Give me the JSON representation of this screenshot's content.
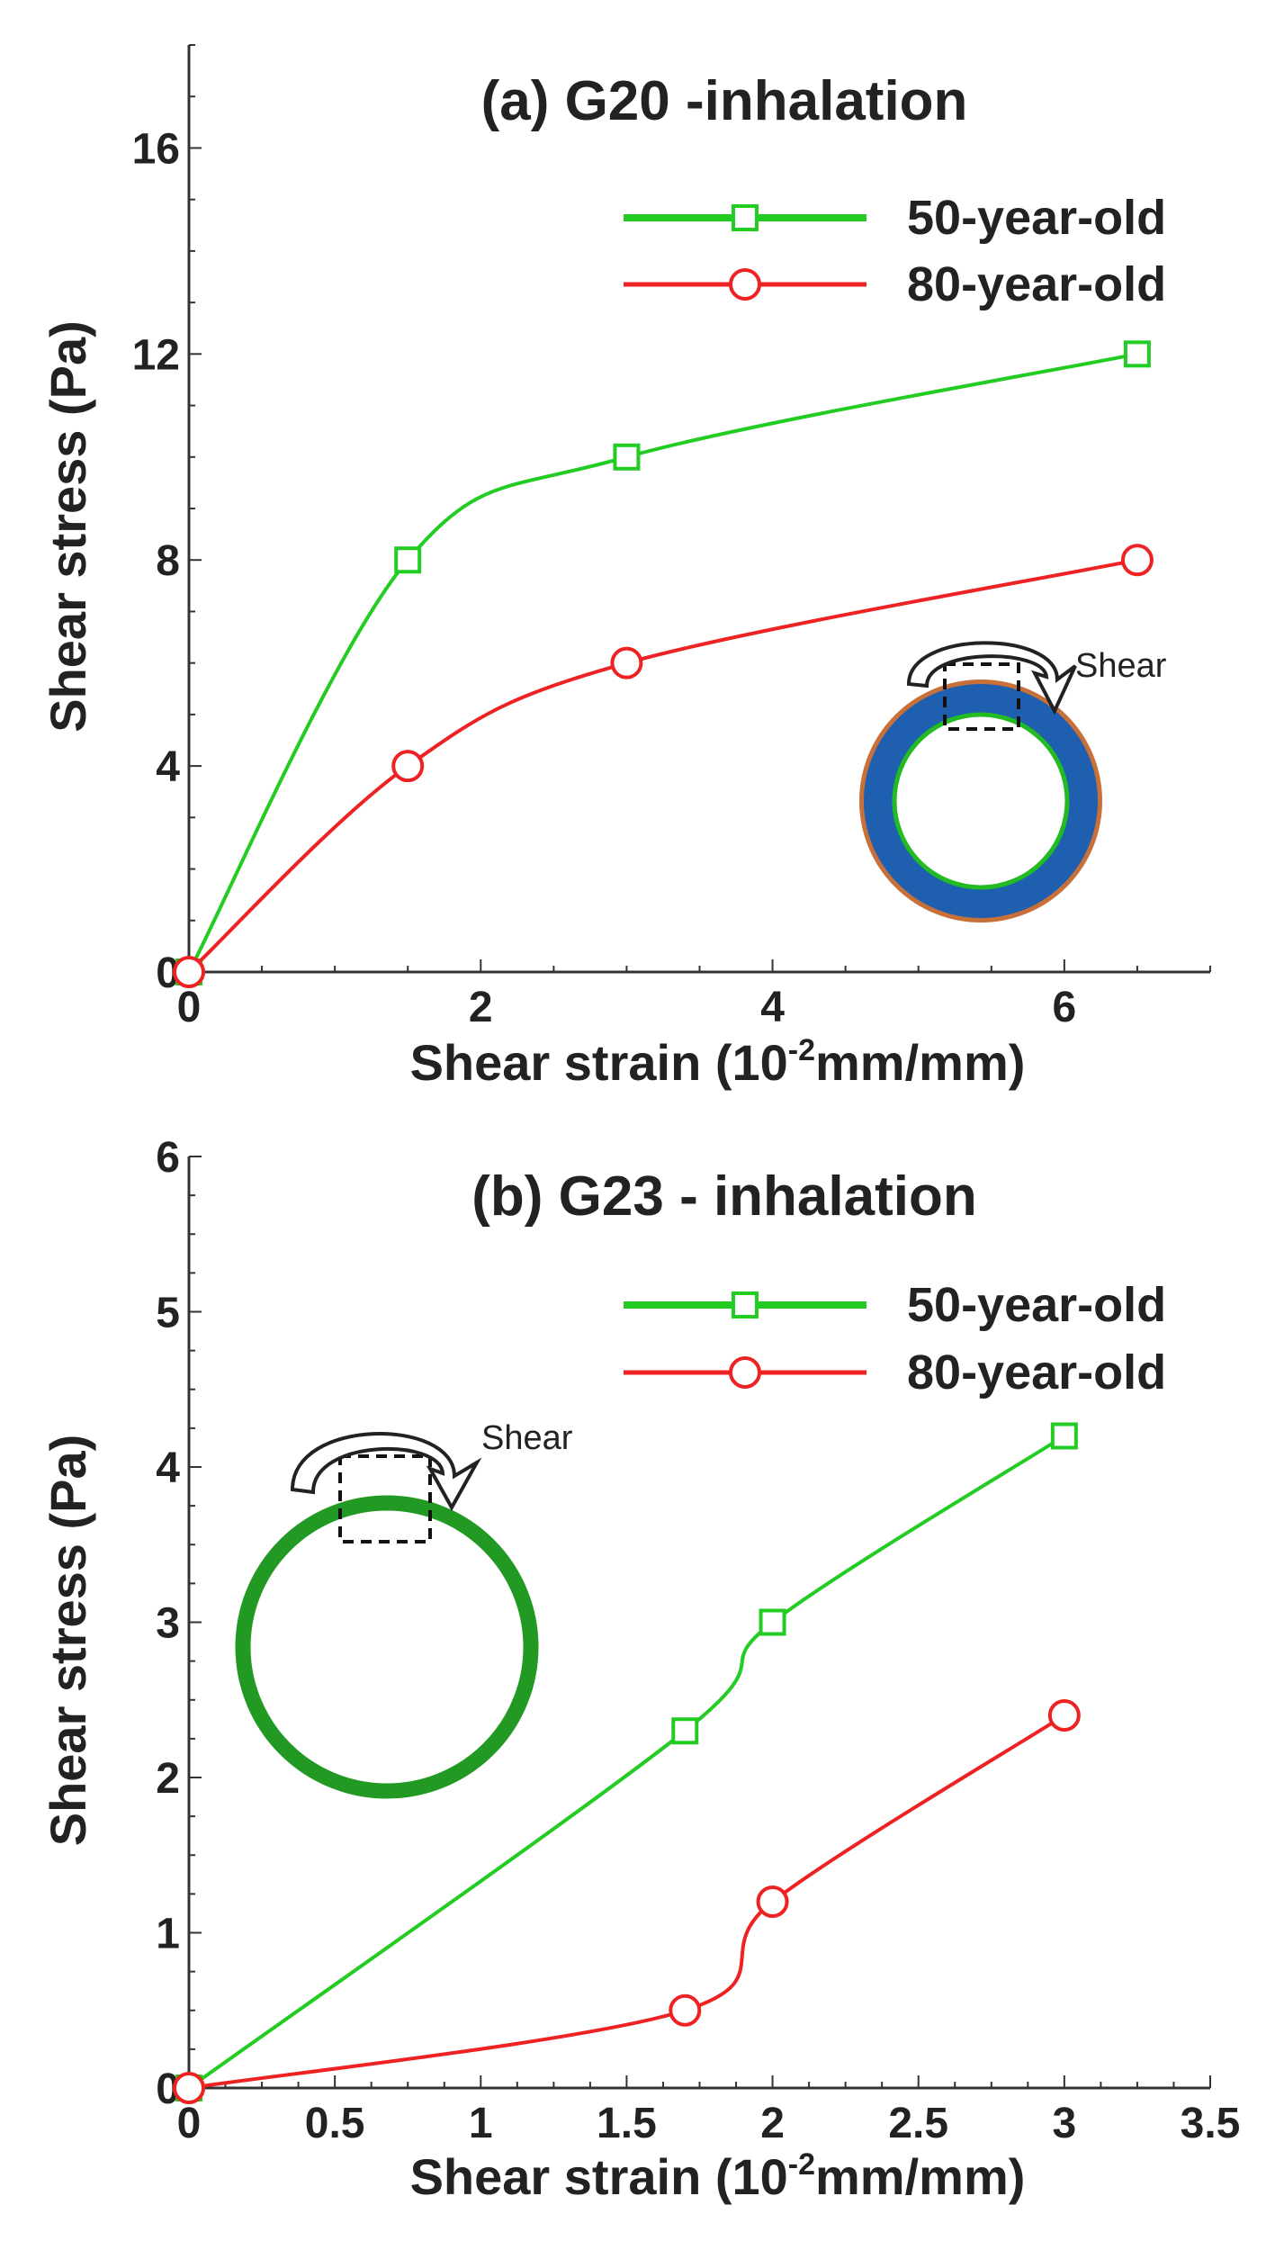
{
  "chart_data": [
    {
      "type": "line",
      "title": "(a) G20 -inhalation",
      "xlabel_parts": [
        "Shear strain (10",
        "-2",
        "mm/mm)"
      ],
      "ylabel": "Shear stress (Pa)",
      "xlim": [
        0,
        7
      ],
      "ylim": [
        0,
        18
      ],
      "xticks": [
        0,
        2,
        4,
        6
      ],
      "xtick_labels": [
        "0",
        "2",
        "4",
        "6"
      ],
      "yticks": [
        0,
        4,
        8,
        12,
        16
      ],
      "ytick_labels": [
        "0",
        "4",
        "8",
        "12",
        "16"
      ],
      "x": [
        0,
        1.5,
        3,
        6.5
      ],
      "series": [
        {
          "name": "50-year-old",
          "color": "#22cc22",
          "marker": "square",
          "values": [
            0,
            8,
            10,
            12
          ]
        },
        {
          "name": "80-year-old",
          "color": "#ee2222",
          "marker": "circle",
          "values": [
            0,
            4,
            6,
            8
          ]
        }
      ],
      "inset": {
        "label": "Shear",
        "ring_color": "#1f5fb0",
        "edge_color": "#c8703a",
        "inner_edge_color": "#22bb22"
      }
    },
    {
      "type": "line",
      "title": "(b) G23 - inhalation",
      "xlabel_parts": [
        "Shear strain (10",
        "-2",
        "mm/mm)"
      ],
      "ylabel": "Shear stress (Pa)",
      "xlim": [
        0,
        3.5
      ],
      "ylim": [
        0,
        6
      ],
      "xticks": [
        0,
        0.5,
        1,
        1.5,
        2,
        2.5,
        3,
        3.5
      ],
      "xtick_labels": [
        "0",
        "0.5",
        "1",
        "1.5",
        "2",
        "2.5",
        "3",
        "3.5"
      ],
      "yticks": [
        0,
        1,
        2,
        3,
        4,
        5,
        6
      ],
      "ytick_labels": [
        "0",
        "1",
        "2",
        "3",
        "4",
        "5",
        "6"
      ],
      "x": [
        0,
        1.7,
        2,
        3
      ],
      "series": [
        {
          "name": "50-year-old",
          "color": "#22cc22",
          "marker": "square",
          "values": [
            0,
            2.3,
            3,
            4.2
          ]
        },
        {
          "name": "80-year-old",
          "color": "#ee2222",
          "marker": "circle",
          "values": [
            0,
            0.5,
            1.2,
            2.4
          ]
        }
      ],
      "inset": {
        "label": "Shear",
        "ring_color": "#229922"
      }
    }
  ]
}
